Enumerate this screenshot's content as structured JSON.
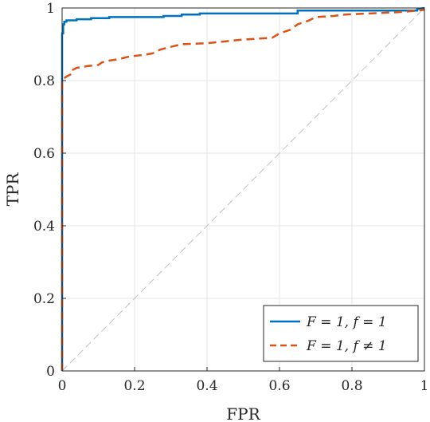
{
  "chart_data": {
    "type": "line",
    "title": "",
    "xlabel": "FPR",
    "ylabel": "TPR",
    "xlim": [
      0,
      1
    ],
    "ylim": [
      0,
      1
    ],
    "xticks": [
      "0",
      "0.2",
      "0.4",
      "0.6",
      "0.8",
      "1"
    ],
    "yticks": [
      "0",
      "0.2",
      "0.4",
      "0.6",
      "0.8",
      "1"
    ],
    "grid": true,
    "legend_position": "bottom-right",
    "series": [
      {
        "name": "F = 1, f = 1",
        "color": "#0072BD",
        "style": "solid",
        "points": [
          [
            0,
            0
          ],
          [
            0,
            0.93
          ],
          [
            0.003,
            0.93
          ],
          [
            0.003,
            0.955
          ],
          [
            0.006,
            0.955
          ],
          [
            0.006,
            0.962
          ],
          [
            0.012,
            0.962
          ],
          [
            0.012,
            0.966
          ],
          [
            0.04,
            0.966
          ],
          [
            0.04,
            0.969
          ],
          [
            0.08,
            0.969
          ],
          [
            0.08,
            0.972
          ],
          [
            0.13,
            0.972
          ],
          [
            0.13,
            0.975
          ],
          [
            0.28,
            0.975
          ],
          [
            0.28,
            0.978
          ],
          [
            0.33,
            0.978
          ],
          [
            0.33,
            0.982
          ],
          [
            0.38,
            0.982
          ],
          [
            0.38,
            0.985
          ],
          [
            0.65,
            0.985
          ],
          [
            0.65,
            0.993
          ],
          [
            0.98,
            0.993
          ],
          [
            0.98,
            0.997
          ],
          [
            1.0,
            1.0
          ]
        ]
      },
      {
        "name": "F = 1, f ≠ 1",
        "color": "#D95319",
        "style": "dashed",
        "points": [
          [
            0,
            0
          ],
          [
            0,
            0.8
          ],
          [
            0.005,
            0.805
          ],
          [
            0.01,
            0.81
          ],
          [
            0.02,
            0.815
          ],
          [
            0.03,
            0.82
          ],
          [
            0.03,
            0.83
          ],
          [
            0.04,
            0.835
          ],
          [
            0.06,
            0.838
          ],
          [
            0.07,
            0.84
          ],
          [
            0.1,
            0.843
          ],
          [
            0.11,
            0.85
          ],
          [
            0.13,
            0.855
          ],
          [
            0.15,
            0.858
          ],
          [
            0.16,
            0.86
          ],
          [
            0.18,
            0.865
          ],
          [
            0.2,
            0.868
          ],
          [
            0.22,
            0.87
          ],
          [
            0.25,
            0.875
          ],
          [
            0.27,
            0.885
          ],
          [
            0.3,
            0.893
          ],
          [
            0.33,
            0.9
          ],
          [
            0.4,
            0.903
          ],
          [
            0.45,
            0.908
          ],
          [
            0.5,
            0.913
          ],
          [
            0.58,
            0.918
          ],
          [
            0.6,
            0.93
          ],
          [
            0.63,
            0.94
          ],
          [
            0.65,
            0.955
          ],
          [
            0.68,
            0.965
          ],
          [
            0.7,
            0.975
          ],
          [
            0.75,
            0.978
          ],
          [
            0.78,
            0.982
          ],
          [
            0.85,
            0.985
          ],
          [
            0.92,
            0.988
          ],
          [
            0.95,
            0.99
          ],
          [
            0.97,
            0.992
          ],
          [
            1.0,
            0.995
          ]
        ]
      }
    ],
    "reference_line": {
      "from": [
        0,
        0
      ],
      "to": [
        1,
        1
      ],
      "color": "#c0c0c0",
      "style": "dashed"
    }
  },
  "legend": {
    "items": [
      {
        "label": "F = 1, f = 1",
        "color": "#0072BD",
        "style": "solid"
      },
      {
        "label": "F = 1, f ≠ 1",
        "color": "#D95319",
        "style": "dashed"
      }
    ]
  }
}
